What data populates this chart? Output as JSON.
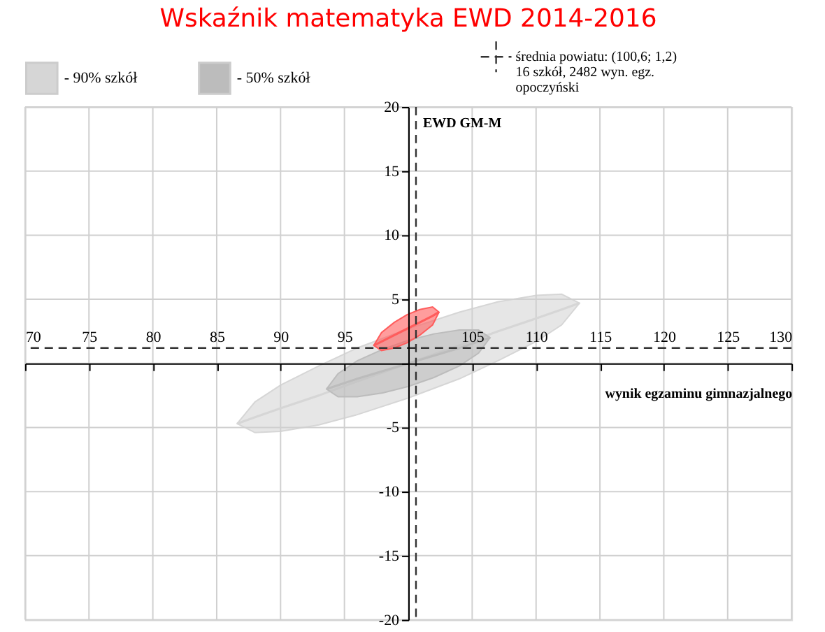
{
  "chart_data": {
    "type": "line",
    "title": "Wskaźnik matematyka EWD 2014-2016",
    "xlabel": "wynik egzaminu gimnazjalnego",
    "ylabel": "EWD GM-M",
    "series": [
      {
        "name": "- 90% szkół",
        "color": "#d6d6d6",
        "x": [
          86.6,
          88,
          90,
          93,
          96,
          100,
          104,
          107,
          110,
          112,
          113.4
        ],
        "values": [
          -4.7,
          -4.2,
          -3.5,
          -2.5,
          -1.4,
          0,
          1.4,
          2.5,
          3.5,
          4.2,
          4.7
        ],
        "upper": [
          -4.7,
          -3.0,
          -1.7,
          -0.2,
          1.2,
          2.7,
          4.0,
          4.8,
          5.3,
          5.4,
          4.7
        ],
        "lower": [
          -4.7,
          -5.4,
          -5.3,
          -4.8,
          -4.0,
          -2.7,
          -1.2,
          0.2,
          1.7,
          3.0,
          4.7
        ]
      },
      {
        "name": "- 50% szkół",
        "color": "#bcbcbc",
        "x": [
          93.6,
          94.5,
          96,
          98,
          100,
          102,
          104,
          105.5,
          106.4
        ],
        "values": [
          -2.0,
          -1.7,
          -1.2,
          -0.6,
          0,
          0.6,
          1.2,
          1.7,
          2.0
        ],
        "upper": [
          -2.0,
          -0.8,
          0.2,
          1.1,
          1.8,
          2.3,
          2.6,
          2.6,
          2.0
        ],
        "lower": [
          -2.0,
          -2.6,
          -2.6,
          -2.3,
          -1.8,
          -1.1,
          -0.2,
          0.8,
          2.0
        ]
      },
      {
        "color": "#ff5c5c",
        "x": [
          97.3,
          97.9,
          98.9,
          99.9,
          100.9,
          101.9,
          102.4
        ],
        "values": [
          1.4,
          1.7,
          2.2,
          2.7,
          3.2,
          3.7,
          4.0
        ],
        "upper": [
          1.4,
          2.4,
          3.2,
          3.8,
          4.2,
          4.4,
          4.0
        ],
        "lower": [
          1.4,
          1.0,
          1.2,
          1.6,
          2.2,
          3.0,
          4.0
        ]
      }
    ],
    "xlim": [
      70,
      130
    ],
    "ylim": [
      -20,
      20
    ],
    "xticks": [
      70,
      75,
      80,
      85,
      90,
      95,
      {
        "value": 100,
        "label": null
      },
      105,
      110,
      115,
      120,
      125,
      130
    ],
    "yticks": [
      -20,
      -15,
      -10,
      -5,
      {
        "value": 0,
        "label": null
      },
      5,
      10,
      15,
      20
    ],
    "ref_lines": [
      {
        "axis": "x",
        "value": 100.6,
        "label": "średnia powiatu: (100,6; 1,2)",
        "color": "#333333",
        "line_style": "dashed"
      },
      {
        "axis": "y",
        "value": 1.2,
        "color": "#333333",
        "line_style": "dashed"
      }
    ],
    "annotations": [
      "16 szkół, 2482 wyn. egz.",
      "opoczyński"
    ],
    "grid": true,
    "legend": "top"
  }
}
